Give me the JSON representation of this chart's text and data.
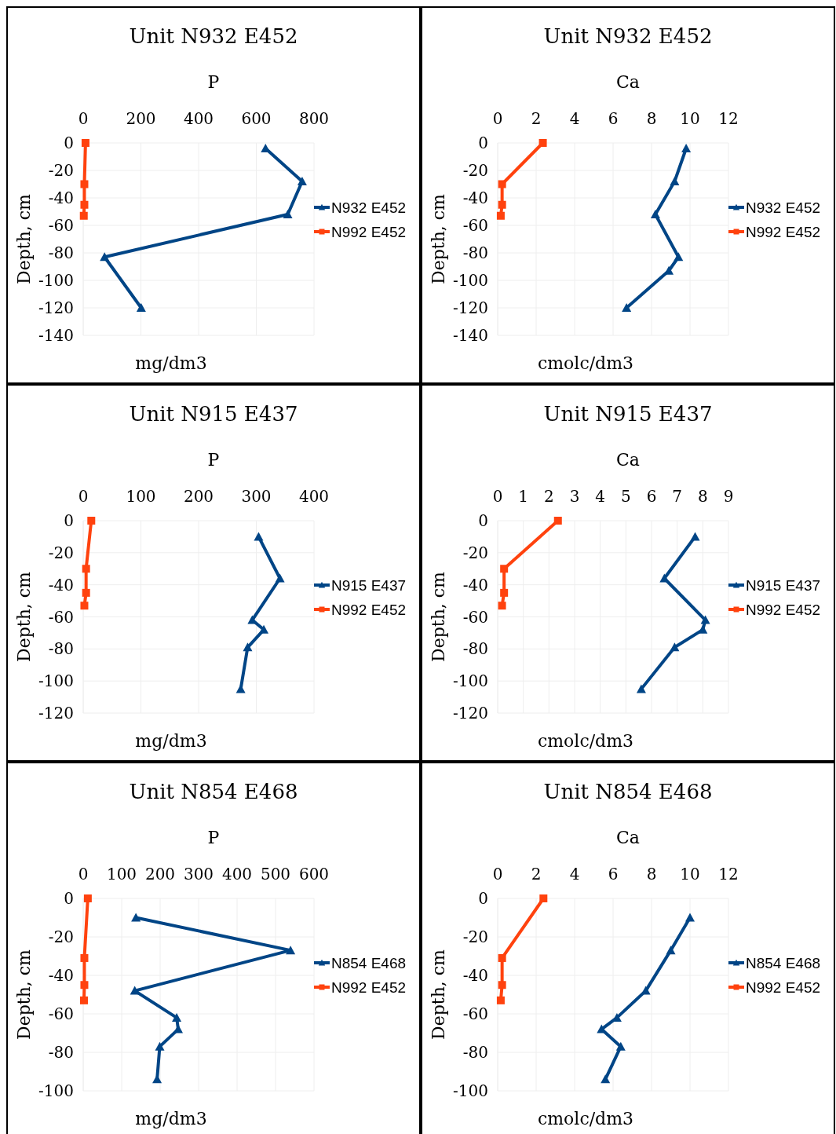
{
  "chart_data": [
    {
      "type": "line",
      "title": "Unit N932 E452",
      "subtitle": "P",
      "xlabel": "mg/dm3",
      "ylabel": "Depth, cm",
      "xlim": [
        0,
        800
      ],
      "xticks": [
        0,
        200,
        400,
        600,
        800
      ],
      "ylim": [
        -140,
        0
      ],
      "yticks": [
        0,
        -20,
        -40,
        -60,
        -80,
        -100,
        -120,
        -140
      ],
      "grid": true,
      "legend": "right",
      "line_style": "solid",
      "series": [
        {
          "name": "N932 E452",
          "color": "#004586",
          "marker": "triangle",
          "x": [
            632,
            759,
            709,
            74,
            201
          ],
          "values": [
            -4,
            -28,
            -52,
            -83,
            -120
          ]
        },
        {
          "name": "N992 E452",
          "color": "#ff420e",
          "marker": "square",
          "x": [
            8,
            4,
            4,
            2
          ],
          "values": [
            0,
            -30,
            -45,
            -53
          ]
        }
      ]
    },
    {
      "type": "line",
      "title": "Unit N932 E452",
      "subtitle": "Ca",
      "xlabel": "cmolc/dm3",
      "ylabel": "Depth, cm",
      "xlim": [
        0,
        12
      ],
      "xticks": [
        0,
        2,
        4,
        6,
        8,
        10,
        12
      ],
      "ylim": [
        -140,
        0
      ],
      "yticks": [
        0,
        -20,
        -40,
        -60,
        -80,
        -100,
        -120,
        -140
      ],
      "grid": true,
      "legend": "right",
      "line_style": "solid",
      "series": [
        {
          "name": "N932 E452",
          "color": "#004586",
          "marker": "triangle",
          "x": [
            9.8,
            9.2,
            8.2,
            9.4,
            8.9,
            6.7
          ],
          "values": [
            -4,
            -28,
            -52,
            -83,
            -93,
            -120
          ]
        },
        {
          "name": "N992 E452",
          "color": "#ff420e",
          "marker": "square",
          "x": [
            2.35,
            0.23,
            0.23,
            0.16
          ],
          "values": [
            0,
            -30,
            -45,
            -53
          ]
        }
      ]
    },
    {
      "type": "line",
      "title": "Unit N915 E437",
      "subtitle": "P",
      "xlabel": "mg/dm3",
      "ylabel": "Depth, cm",
      "xlim": [
        0,
        400
      ],
      "xticks": [
        0,
        100,
        200,
        300,
        400
      ],
      "ylim": [
        -120,
        0
      ],
      "yticks": [
        0,
        -20,
        -40,
        -60,
        -80,
        -100,
        -120
      ],
      "grid": true,
      "legend": "right",
      "line_style": "solid",
      "series": [
        {
          "name": "N915 E437",
          "color": "#004586",
          "marker": "triangle",
          "x": [
            304,
            341,
            293,
            313,
            285,
            273
          ],
          "values": [
            -10,
            -36,
            -62,
            -68,
            -79,
            -105
          ]
        },
        {
          "name": "N992 E452",
          "color": "#ff420e",
          "marker": "square",
          "x": [
            14,
            5,
            5,
            2
          ],
          "values": [
            0,
            -30,
            -45,
            -53
          ]
        }
      ]
    },
    {
      "type": "line",
      "title": "Unit N915 E437",
      "subtitle": "Ca",
      "xlabel": "cmolc/dm3",
      "ylabel": "Depth, cm",
      "xlim": [
        0,
        9
      ],
      "xticks": [
        0,
        1,
        2,
        3,
        4,
        5,
        6,
        7,
        8,
        9
      ],
      "ylim": [
        -120,
        0
      ],
      "yticks": [
        0,
        -20,
        -40,
        -60,
        -80,
        -100,
        -120
      ],
      "grid": true,
      "legend": "right",
      "line_style": "solid",
      "series": [
        {
          "name": "N915 E437",
          "color": "#004586",
          "marker": "triangle",
          "x": [
            7.7,
            6.5,
            8.1,
            8.0,
            6.9,
            5.6
          ],
          "values": [
            -10,
            -36,
            -62,
            -68,
            -79,
            -105
          ]
        },
        {
          "name": "N992 E452",
          "color": "#ff420e",
          "marker": "square",
          "x": [
            2.35,
            0.25,
            0.25,
            0.17
          ],
          "values": [
            0,
            -30,
            -45,
            -53
          ]
        }
      ]
    },
    {
      "type": "line",
      "title": "Unit N854 E468",
      "subtitle": "P",
      "xlabel": "mg/dm3",
      "ylabel": "Depth, cm",
      "xlim": [
        0,
        600
      ],
      "xticks": [
        0,
        100,
        200,
        300,
        400,
        500,
        600
      ],
      "ylim": [
        -100,
        0
      ],
      "yticks": [
        0,
        -20,
        -40,
        -60,
        -80,
        -100
      ],
      "grid": true,
      "legend": "right",
      "line_style": "solid",
      "series": [
        {
          "name": "N854 E468",
          "color": "#004586",
          "marker": "triangle",
          "x": [
            137,
            539,
            134,
            243,
            247,
            199,
            192
          ],
          "values": [
            -10,
            -27,
            -48,
            -62,
            -68,
            -77,
            -94
          ]
        },
        {
          "name": "N992 E452",
          "color": "#ff420e",
          "marker": "square",
          "x": [
            12,
            3,
            3,
            2
          ],
          "values": [
            0,
            -31,
            -45,
            -53
          ]
        }
      ]
    },
    {
      "type": "line",
      "title": "Unit N854 E468",
      "subtitle": "Ca",
      "xlabel": "cmolc/dm3",
      "ylabel": "Depth, cm",
      "xlim": [
        0,
        12
      ],
      "xticks": [
        0,
        2,
        4,
        6,
        8,
        10,
        12
      ],
      "ylim": [
        -100,
        0
      ],
      "yticks": [
        0,
        -20,
        -40,
        -60,
        -80,
        -100
      ],
      "grid": true,
      "legend": "right",
      "line_style": "solid",
      "series": [
        {
          "name": "N854 E468",
          "color": "#004586",
          "marker": "triangle",
          "x": [
            10.0,
            9.0,
            7.7,
            6.2,
            5.4,
            6.4,
            5.6
          ],
          "values": [
            -10,
            -27,
            -48,
            -62,
            -68,
            -77,
            -94
          ]
        },
        {
          "name": "N992 E452",
          "color": "#ff420e",
          "marker": "square",
          "x": [
            2.38,
            0.23,
            0.23,
            0.16
          ],
          "values": [
            0,
            -31,
            -45,
            -53
          ]
        }
      ]
    }
  ]
}
